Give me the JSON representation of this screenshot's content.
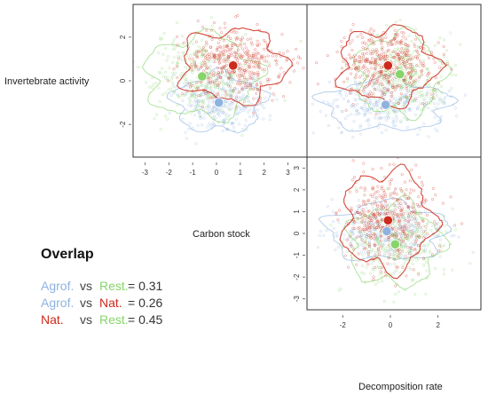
{
  "colors": {
    "agroforestry": "#8fb3e0",
    "natural": "#cc2a1c",
    "restoration": "#86d46a",
    "frame": "#333333",
    "text": "#222222"
  },
  "axis_labels": {
    "invertebrate": "Invertebrate activity",
    "carbon": "Carbon stock",
    "decomposition": "Decomposition rate"
  },
  "overlap": {
    "title": "Overlap",
    "rows": [
      {
        "g1": "Agrof.",
        "vs": "vs",
        "g2": "Rest.",
        "value": "= 0.31",
        "c1": "agroforestry",
        "c2": "restoration"
      },
      {
        "g1": "Agrof.",
        "vs": "vs",
        "g2": "Nat.",
        "value": "= 0.26",
        "c1": "agroforestry",
        "c2": "natural"
      },
      {
        "g1": "Nat.",
        "vs": "vs",
        "g2": "Rest.",
        "value": "= 0.45",
        "c1": "natural",
        "c2": "restoration"
      }
    ]
  },
  "chart_data": [
    {
      "type": "scatter",
      "title": "",
      "xlabel": "Carbon stock",
      "ylabel": "Invertebrate activity",
      "xlim": [
        -3.5,
        3.8
      ],
      "ylim": [
        -3.5,
        3.5
      ],
      "xticks": [
        "-3",
        "-2",
        "-1",
        "0",
        "1",
        "2",
        "3"
      ],
      "yticks": [
        "-2",
        "0",
        "2"
      ],
      "series": [
        {
          "color": "agroforestry",
          "centroid": [
            0.1,
            -1.0
          ],
          "spread": [
            1.2,
            0.85
          ]
        },
        {
          "color": "restoration",
          "centroid": [
            -0.6,
            0.2
          ],
          "spread": [
            1.5,
            1.2
          ]
        },
        {
          "color": "natural",
          "centroid": [
            0.7,
            0.7
          ],
          "spread": [
            1.4,
            1.05
          ]
        }
      ]
    },
    {
      "type": "scatter",
      "title": "",
      "xlabel": "",
      "ylabel": "",
      "xlim": [
        -3.5,
        3.8
      ],
      "ylim": [
        -3.5,
        3.5
      ],
      "xticks": [],
      "yticks": [],
      "series": [
        {
          "color": "agroforestry",
          "centroid": [
            -0.2,
            -1.1
          ],
          "spread": [
            1.7,
            0.75
          ]
        },
        {
          "color": "restoration",
          "centroid": [
            0.4,
            0.3
          ],
          "spread": [
            1.15,
            1.2
          ]
        },
        {
          "color": "natural",
          "centroid": [
            -0.1,
            0.7
          ],
          "spread": [
            1.3,
            1.1
          ]
        }
      ]
    },
    {
      "type": "scatter",
      "title": "",
      "xlabel": "Decomposition rate",
      "ylabel": "",
      "xlim": [
        -3.5,
        3.8
      ],
      "ylim": [
        -3.5,
        3.5
      ],
      "xticks": [
        "-2",
        "0",
        "2"
      ],
      "yticks": [
        "-3",
        "-2",
        "-1",
        "0",
        "1",
        "2",
        "3"
      ],
      "series": [
        {
          "color": "agroforestry",
          "centroid": [
            -0.15,
            0.1
          ],
          "spread": [
            1.6,
            0.85
          ]
        },
        {
          "color": "restoration",
          "centroid": [
            0.2,
            -0.5
          ],
          "spread": [
            1.25,
            1.2
          ]
        },
        {
          "color": "natural",
          "centroid": [
            -0.1,
            0.6
          ],
          "spread": [
            1.2,
            1.45
          ]
        }
      ]
    }
  ]
}
